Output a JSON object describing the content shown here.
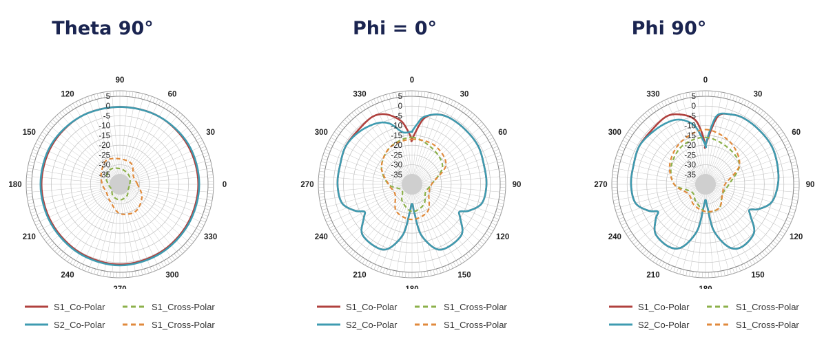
{
  "colors": {
    "s1_co": "#b0413e",
    "s2_co": "#3e9bb0",
    "s1_cross_green": "#8cb04a",
    "s1_cross_orange": "#e08a3c",
    "grid": "#c8c8c8"
  },
  "chart_data": [
    {
      "type": "polar",
      "title": "Theta 90°",
      "angle_labels": [
        "90",
        "60",
        "30",
        "0",
        "330",
        "300",
        "270",
        "240",
        "210",
        "180",
        "150",
        "120"
      ],
      "radial_ticks": [
        "5",
        "0",
        "-5",
        "-10",
        "-15",
        "-20",
        "-25",
        "-30",
        "-35"
      ],
      "rlim": [
        -40,
        5
      ],
      "series": [
        {
          "name": "S1_Co-Polar",
          "style": "solid",
          "color": "s1_co",
          "angles": [
            0,
            30,
            60,
            90,
            120,
            150,
            180,
            210,
            240,
            270,
            300,
            330
          ],
          "values": [
            0,
            0,
            0,
            -0.5,
            0,
            0,
            0,
            0,
            0.5,
            1,
            0.5,
            0
          ]
        },
        {
          "name": "S2_Co-Polar",
          "style": "solid",
          "color": "s2_co",
          "angles": [
            0,
            30,
            60,
            90,
            120,
            150,
            180,
            210,
            240,
            270,
            300,
            330
          ],
          "values": [
            0.5,
            0.5,
            0,
            -0.5,
            0,
            0.5,
            0.5,
            0.5,
            1,
            1.5,
            1,
            0.5
          ]
        },
        {
          "name": "S1_Cross-Polar",
          "style": "dashed",
          "color": "s1_cross_green",
          "angles": [
            0,
            30,
            60,
            90,
            120,
            150,
            180,
            210,
            240,
            270,
            300,
            330
          ],
          "values": [
            -35,
            -34,
            -33,
            -32,
            -31,
            -32,
            -34,
            -35,
            -33,
            -32,
            -33,
            -35
          ]
        },
        {
          "name": "S1_Cross-Polar",
          "style": "dashed",
          "color": "s1_cross_orange",
          "angles": [
            0,
            30,
            60,
            90,
            120,
            150,
            180,
            210,
            240,
            270,
            300,
            330
          ],
          "values": [
            -31,
            -32,
            -28,
            -27,
            -26,
            -29,
            -31,
            -32,
            -30,
            -25,
            -24,
            -27
          ]
        }
      ],
      "legend": [
        {
          "label": "S1_Co-Polar",
          "color": "s1_co",
          "style": "solid"
        },
        {
          "label": "S1_Cross-Polar",
          "color": "s1_cross_green",
          "style": "dashed"
        },
        {
          "label": "S2_Co-Polar",
          "color": "s2_co",
          "style": "solid"
        },
        {
          "label": "S1_Cross-Polar",
          "color": "s1_cross_orange",
          "style": "dashed"
        }
      ]
    },
    {
      "type": "polar",
      "title": "Phi = 0°",
      "angle_labels": [
        "0",
        "30",
        "60",
        "90",
        "120",
        "150",
        "180",
        "210",
        "240",
        "270",
        "300",
        "330"
      ],
      "radial_ticks": [
        "5",
        "0",
        "-5",
        "-10",
        "-15",
        "-20",
        "-25",
        "-30",
        "-35"
      ],
      "rlim": [
        -40,
        5
      ],
      "series": [
        {
          "name": "S1_Co-Polar",
          "style": "solid",
          "color": "s1_co",
          "angles": [
            0,
            10,
            20,
            30,
            45,
            60,
            75,
            90,
            105,
            115,
            120,
            125,
            135,
            150,
            160,
            170,
            175,
            180,
            185,
            190,
            200,
            210,
            225,
            235,
            240,
            245,
            255,
            270,
            285,
            300,
            315,
            330,
            340,
            350,
            355,
            0
          ],
          "values": [
            -17,
            -6,
            -2,
            -1,
            -1,
            -1,
            -2,
            -2,
            -3,
            -8,
            -12,
            -10,
            -4,
            -3,
            -5,
            -14,
            -25,
            -30,
            -25,
            -14,
            -5,
            -3,
            -4,
            -10,
            -12,
            -8,
            -3,
            -2,
            -2,
            -1,
            -1,
            0,
            -2,
            -7,
            -12,
            -17
          ]
        },
        {
          "name": "S2_Co-Polar",
          "style": "solid",
          "color": "s2_co",
          "angles": [
            0,
            5,
            10,
            20,
            30,
            45,
            60,
            75,
            90,
            105,
            115,
            120,
            125,
            135,
            150,
            160,
            170,
            175,
            180,
            185,
            190,
            200,
            210,
            225,
            235,
            240,
            245,
            255,
            270,
            285,
            300,
            315,
            330,
            340,
            350,
            0
          ],
          "values": [
            -13,
            -9,
            -5,
            -2,
            -1,
            -1,
            -1,
            -2,
            -2,
            -3,
            -8,
            -12,
            -10,
            -4,
            -3,
            -5,
            -14,
            -25,
            -30,
            -25,
            -14,
            -5,
            -3,
            -4,
            -10,
            -12,
            -8,
            -3,
            -2,
            -2,
            -1,
            -2,
            -4,
            -7,
            -13,
            -13
          ]
        },
        {
          "name": "S1_Cross-Polar",
          "style": "dashed",
          "color": "s1_cross_green",
          "angles": [
            0,
            30,
            60,
            90,
            120,
            150,
            180,
            210,
            240,
            270,
            300,
            330
          ],
          "values": [
            -16,
            -19,
            -22,
            -30,
            -32,
            -28,
            -26,
            -30,
            -34,
            -28,
            -22,
            -18
          ]
        },
        {
          "name": "S1_Cross-Polar",
          "style": "dashed",
          "color": "s1_cross_orange",
          "angles": [
            0,
            30,
            60,
            90,
            120,
            150,
            180,
            210,
            240,
            270,
            300,
            330
          ],
          "values": [
            -17,
            -17,
            -20,
            -30,
            -30,
            -24,
            -22,
            -24,
            -30,
            -28,
            -22,
            -18
          ]
        }
      ],
      "legend": [
        {
          "label": "S1_Co-Polar",
          "color": "s1_co",
          "style": "solid"
        },
        {
          "label": "S1_Cross-Polar",
          "color": "s1_cross_green",
          "style": "dashed"
        },
        {
          "label": "S2_Co-Polar",
          "color": "s2_co",
          "style": "solid"
        },
        {
          "label": "S1_Cross-Polar",
          "color": "s1_cross_orange",
          "style": "dashed"
        }
      ]
    },
    {
      "type": "polar",
      "title": "Phi 90°",
      "angle_labels": [
        "0",
        "30",
        "60",
        "90",
        "120",
        "150",
        "180",
        "210",
        "240",
        "270",
        "300",
        "330"
      ],
      "radial_ticks": [
        "5",
        "0",
        "-5",
        "-10",
        "-15",
        "-20",
        "-25",
        "-30",
        "-35"
      ],
      "rlim": [
        -40,
        5
      ],
      "series": [
        {
          "name": "S1_Co-Polar",
          "style": "solid",
          "color": "s1_co",
          "angles": [
            0,
            10,
            20,
            30,
            45,
            60,
            75,
            90,
            105,
            115,
            120,
            125,
            135,
            150,
            160,
            170,
            175,
            180,
            185,
            190,
            200,
            210,
            225,
            235,
            240,
            245,
            255,
            270,
            285,
            300,
            315,
            330,
            340,
            350,
            355,
            0
          ],
          "values": [
            -20,
            -5,
            -2,
            -1,
            -1,
            -1,
            -2,
            -3,
            -5,
            -10,
            -14,
            -12,
            -5,
            -3,
            -6,
            -16,
            -28,
            -32,
            -28,
            -16,
            -6,
            -3,
            -4,
            -9,
            -12,
            -8,
            -3,
            -2,
            -2,
            -1,
            -1,
            0,
            -2,
            -6,
            -12,
            -20
          ]
        },
        {
          "name": "S2_Co-Polar",
          "style": "solid",
          "color": "s2_co",
          "angles": [
            0,
            5,
            10,
            20,
            30,
            45,
            60,
            75,
            90,
            105,
            115,
            120,
            125,
            135,
            150,
            160,
            170,
            175,
            180,
            185,
            190,
            200,
            210,
            225,
            235,
            240,
            245,
            255,
            270,
            285,
            300,
            315,
            330,
            340,
            350,
            0
          ],
          "values": [
            -20,
            -12,
            -4,
            -2,
            -1,
            -1,
            -1,
            -2,
            -3,
            -5,
            -10,
            -14,
            -12,
            -5,
            -3,
            -6,
            -16,
            -28,
            -32,
            -28,
            -16,
            -6,
            -3,
            -4,
            -9,
            -12,
            -8,
            -3,
            -2,
            -2,
            -1,
            -2,
            -3,
            -5,
            -10,
            -20
          ]
        },
        {
          "name": "S1_Cross-Polar",
          "style": "dashed",
          "color": "s1_cross_green",
          "angles": [
            0,
            30,
            60,
            90,
            120,
            150,
            180,
            210,
            240,
            270,
            300,
            330
          ],
          "values": [
            -16,
            -18,
            -20,
            -28,
            -30,
            -26,
            -26,
            -30,
            -32,
            -24,
            -20,
            -17
          ]
        },
        {
          "name": "S1_Cross-Polar",
          "style": "dashed",
          "color": "s1_cross_orange",
          "angles": [
            0,
            30,
            60,
            90,
            120,
            150,
            180,
            210,
            240,
            270,
            300,
            330
          ],
          "values": [
            -12,
            -15,
            -20,
            -30,
            -30,
            -26,
            -26,
            -28,
            -30,
            -24,
            -19,
            -15
          ]
        }
      ],
      "legend": [
        {
          "label": "S1_Co-Polar",
          "color": "s1_co",
          "style": "solid"
        },
        {
          "label": "S1_Cross-Polar",
          "color": "s1_cross_green",
          "style": "dashed"
        },
        {
          "label": "S2_Co-Polar",
          "color": "s2_co",
          "style": "solid"
        },
        {
          "label": "S1_Cross-Polar",
          "color": "s1_cross_orange",
          "style": "dashed"
        }
      ]
    }
  ]
}
